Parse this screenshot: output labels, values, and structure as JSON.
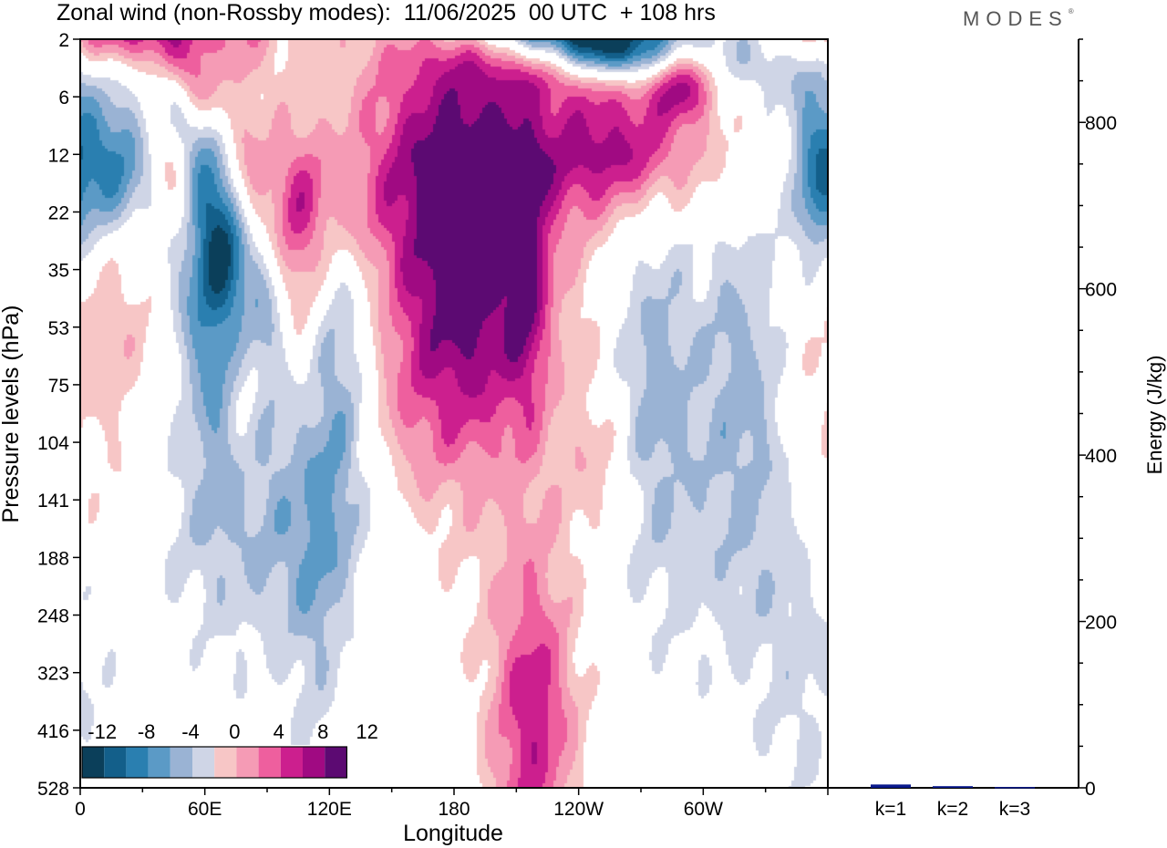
{
  "title": "Zonal wind (non-Rossby modes):  11/06/2025  00 UTC  + 108 hrs",
  "logo": "MODES",
  "logo_mark": "®",
  "colors": {
    "neg": [
      "#0b3f5a",
      "#135f8a",
      "#2a7fb0",
      "#5b9ac6",
      "#9ab3d4",
      "#cfd5e6"
    ],
    "pos": [
      "#f7c6c6",
      "#f59bb5",
      "#ee5f9e",
      "#cc1f8e",
      "#a00a82",
      "#5c0a72"
    ]
  },
  "chart_data": [
    {
      "type": "heatmap",
      "title": "Zonal wind (non-Rossby modes):  11/06/2025  00 UTC  + 108 hrs",
      "xlabel": "Longitude",
      "ylabel": "Pressure levels (hPa)",
      "x_ticks": [
        "0",
        "60E",
        "120E",
        "180",
        "120W",
        "60W"
      ],
      "y_ticks": [
        "2",
        "6",
        "12",
        "22",
        "35",
        "53",
        "75",
        "104",
        "141",
        "188",
        "248",
        "323",
        "416",
        "528"
      ],
      "colorbar_labels": [
        "-12",
        "-8",
        "-4",
        "0",
        "4",
        "8",
        "12"
      ],
      "features": [
        {
          "lon": 68,
          "level": 3.4,
          "value": -14,
          "slon": 12,
          "slev": 1.3,
          "rot": -0.75
        },
        {
          "lon": 58,
          "level": 4.2,
          "value": -6,
          "slon": 10,
          "slev": 2.0,
          "rot": -0.65
        },
        {
          "lon": 55,
          "level": 6.0,
          "value": -3,
          "slon": 18,
          "slev": 2.3,
          "rot": -0.45
        },
        {
          "lon": 12,
          "level": 2.2,
          "value": -9,
          "slon": 16,
          "slev": 0.9,
          "rot": 0
        },
        {
          "lon": 34,
          "level": 1.2,
          "value": -3,
          "slon": 28,
          "slev": 0.9,
          "rot": 0.15
        },
        {
          "lon": 48,
          "level": 2.5,
          "value": 10,
          "slon": 9,
          "slev": 1.0,
          "rot": -0.7
        },
        {
          "lon": 104,
          "level": 3.9,
          "value": 7,
          "slon": 9,
          "slev": 1.6,
          "rot": 0
        },
        {
          "lon": 80,
          "level": 4.6,
          "value": 5,
          "slon": 7,
          "slev": 2.5,
          "rot": 0
        },
        {
          "lon": 116,
          "level": 3.0,
          "value": 5,
          "slon": 30,
          "slev": 0.9,
          "rot": -0.3
        },
        {
          "lon": 186,
          "level": 4.1,
          "value": 9,
          "slon": 22,
          "slev": 2.2,
          "rot": 0
        },
        {
          "lon": 189,
          "level": 3.4,
          "value": 5,
          "slon": 42,
          "slev": 3.6,
          "rot": 0
        },
        {
          "lon": 215,
          "level": 4.3,
          "value": 6,
          "slon": 7,
          "slev": 1.6,
          "rot": 0
        },
        {
          "lon": 200,
          "level": 2.1,
          "value": 4,
          "slon": 80,
          "slev": 0.9,
          "rot": 0
        },
        {
          "lon": 310,
          "level": 1.8,
          "value": 5,
          "slon": 50,
          "slev": 0.9,
          "rot": 0.35
        },
        {
          "lon": 250,
          "level": 7.4,
          "value": 3,
          "slon": 12,
          "slev": 1.0,
          "rot": 0
        },
        {
          "lon": 215,
          "level": 11.8,
          "value": 7,
          "slon": 14,
          "slev": 2.4,
          "rot": 0.15
        },
        {
          "lon": 226,
          "level": 12.1,
          "value": 3,
          "slon": 14,
          "slev": 1.5,
          "rot": 0
        },
        {
          "lon": 276,
          "level": 5.7,
          "value": -5,
          "slon": 14,
          "slev": 2.1,
          "rot": 0
        },
        {
          "lon": 320,
          "level": 5.5,
          "value": -5,
          "slon": 16,
          "slev": 2.0,
          "rot": 0
        },
        {
          "lon": 354,
          "level": 2.5,
          "value": -6,
          "slon": 8,
          "slev": 1.4,
          "rot": 0
        },
        {
          "lon": 308,
          "level": 2.1,
          "value": -3,
          "slon": 40,
          "slev": 0.9,
          "rot": 0
        },
        {
          "lon": 130,
          "level": 4.0,
          "value": -3,
          "slon": 14,
          "slev": 2.5,
          "rot": 0
        },
        {
          "lon": 94,
          "level": 4.9,
          "value": -4,
          "slon": 14,
          "slev": 3.8,
          "rot": 0.5
        },
        {
          "lon": 125,
          "level": 6.6,
          "value": -4,
          "slon": 10,
          "slev": 2.2,
          "rot": 0
        },
        {
          "lon": 65,
          "level": 8.7,
          "value": -2,
          "slon": 70,
          "slev": 1.3,
          "rot": 0.25
        },
        {
          "lon": 100,
          "level": 0.3,
          "value": 3,
          "slon": 55,
          "slev": 1.2,
          "rot": -0.55
        },
        {
          "lon": 248,
          "level": 0.65,
          "value": 8,
          "slon": 48,
          "slev": 0.5,
          "rot": -0.45
        },
        {
          "lon": 230,
          "level": -0.3,
          "value": -14,
          "slon": 32,
          "slev": 0.7,
          "rot": -0.45
        },
        {
          "lon": 258,
          "level": 0.25,
          "value": -7,
          "slon": 16,
          "slev": 0.4,
          "rot": 0
        },
        {
          "lon": 260,
          "level": -0.25,
          "value": -3,
          "slon": 55,
          "slev": 0.7,
          "rot": -0.2
        },
        {
          "lon": 25,
          "level": -0.15,
          "value": 9,
          "slon": 35,
          "slev": 0.45,
          "rot": 0
        },
        {
          "lon": 55,
          "level": 0.75,
          "value": 7,
          "slon": 8,
          "slev": 0.5,
          "rot": -0.5
        },
        {
          "lon": 330,
          "level": 0.8,
          "value": -6,
          "slon": 24,
          "slev": 0.75,
          "rot": 0
        },
        {
          "lon": 290,
          "level": 0.75,
          "value": 7,
          "slon": 10,
          "slev": 0.45,
          "rot": 0
        },
        {
          "lon": 260,
          "level": 1.9,
          "value": 5,
          "slon": 22,
          "slev": 0.6,
          "rot": 0
        },
        {
          "lon": 15,
          "level": 5.0,
          "value": 4,
          "slon": 30,
          "slev": 1.6,
          "rot": 0
        },
        {
          "lon": 10,
          "level": 8.7,
          "value": 3,
          "slon": 20,
          "slev": 1.3,
          "rot": 0
        },
        {
          "lon": 350,
          "level": 11.4,
          "value": -2,
          "slon": 20,
          "slev": 2.0,
          "rot": 0
        },
        {
          "lon": 112,
          "level": 9.3,
          "value": -4,
          "slon": 10,
          "slev": 2.2,
          "rot": 0
        },
        {
          "lon": 310,
          "level": 8.8,
          "value": -2,
          "slon": 40,
          "slev": 2.0,
          "rot": 0
        },
        {
          "lon": 155,
          "level": 6.2,
          "value": 2,
          "slon": 18,
          "slev": 1.4,
          "rot": 0
        }
      ]
    },
    {
      "type": "bar",
      "categories": [
        "k=1",
        "k=2",
        "k=3"
      ],
      "values": [
        4,
        2,
        1
      ],
      "ylabel": "Energy (J/kg)",
      "ylim": [
        0,
        900
      ],
      "y_ticks": [
        0,
        200,
        400,
        600,
        800
      ],
      "bar_color": "#0a1a8c"
    }
  ]
}
